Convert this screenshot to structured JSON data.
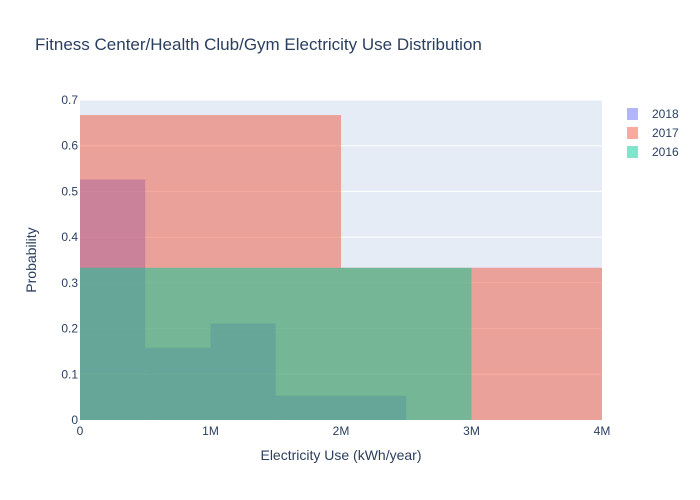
{
  "chart_data": {
    "type": "bar",
    "title": "Fitness Center/Health Club/Gym Electricity Use Distribution",
    "xlabel": "Electricity Use (kWh/year)",
    "ylabel": "Probability",
    "xlim": [
      0,
      4000000
    ],
    "ylim": [
      0,
      0.7
    ],
    "x_ticks": [
      {
        "value": 0,
        "label": "0"
      },
      {
        "value": 1000000,
        "label": "1M"
      },
      {
        "value": 2000000,
        "label": "2M"
      },
      {
        "value": 3000000,
        "label": "3M"
      },
      {
        "value": 4000000,
        "label": "4M"
      }
    ],
    "y_ticks": [
      {
        "value": 0,
        "label": "0"
      },
      {
        "value": 0.1,
        "label": "0.1"
      },
      {
        "value": 0.2,
        "label": "0.2"
      },
      {
        "value": 0.3,
        "label": "0.3"
      },
      {
        "value": 0.4,
        "label": "0.4"
      },
      {
        "value": 0.5,
        "label": "0.5"
      },
      {
        "value": 0.6,
        "label": "0.6"
      },
      {
        "value": 0.7,
        "label": "0.7"
      }
    ],
    "grid": true,
    "legend_position": "top-right",
    "series": [
      {
        "name": "2018",
        "color": "#636efa",
        "bins": [
          {
            "x0": 0,
            "x1": 500000,
            "y": 0.526
          },
          {
            "x0": 500000,
            "x1": 1000000,
            "y": 0.158
          },
          {
            "x0": 1000000,
            "x1": 1500000,
            "y": 0.211
          },
          {
            "x0": 1500000,
            "x1": 2000000,
            "y": 0.053
          },
          {
            "x0": 2000000,
            "x1": 2500000,
            "y": 0.053
          }
        ]
      },
      {
        "name": "2017",
        "color": "#ef553b",
        "bins": [
          {
            "x0": 0,
            "x1": 2000000,
            "y": 0.667
          },
          {
            "x0": 2000000,
            "x1": 4000000,
            "y": 0.333
          }
        ]
      },
      {
        "name": "2016",
        "color": "#00cc96",
        "bins": [
          {
            "x0": 0,
            "x1": 3000000,
            "y": 0.333
          }
        ]
      }
    ]
  }
}
